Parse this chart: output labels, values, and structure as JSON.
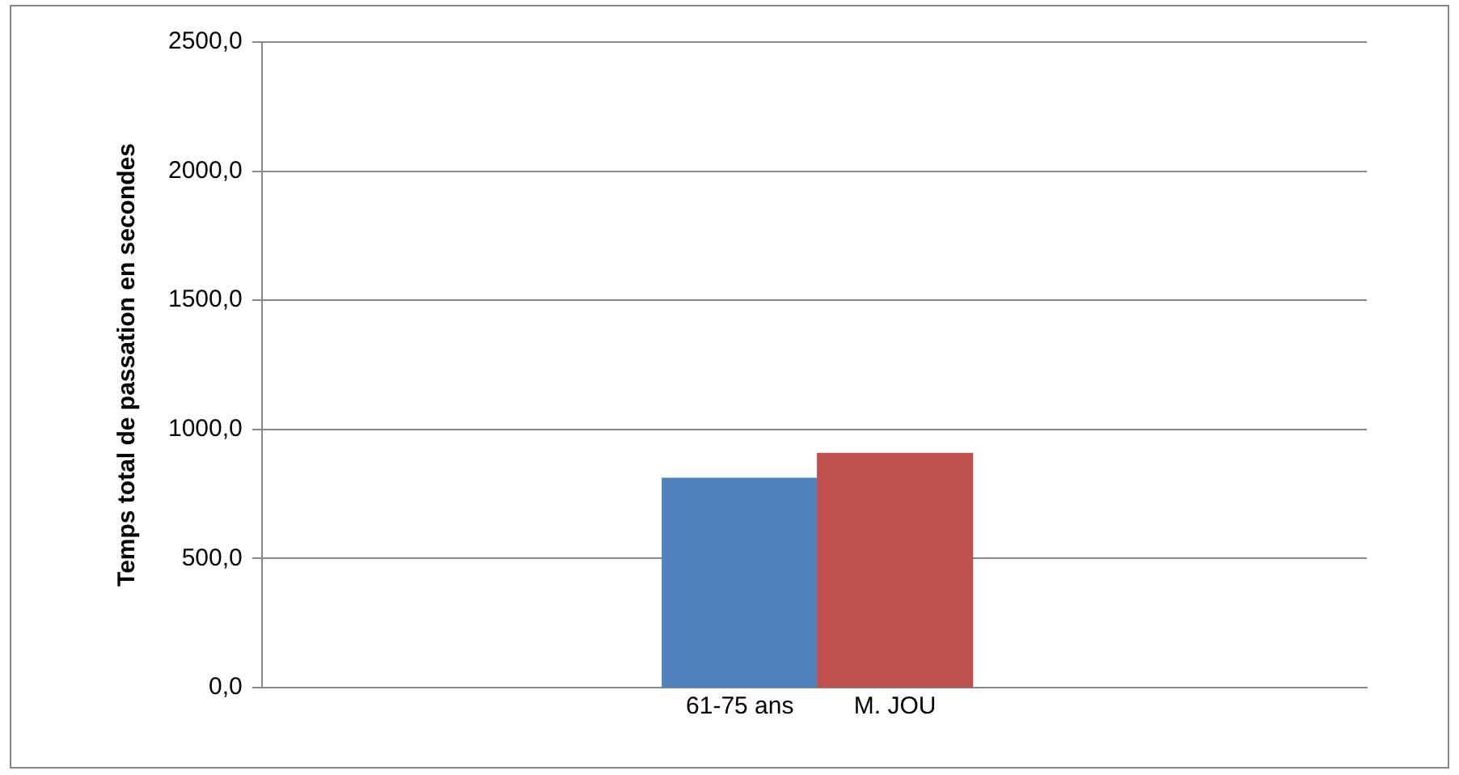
{
  "chart_data": {
    "type": "bar",
    "ylabel": "Temps total de passation en secondes",
    "categories": [
      "61-75 ans",
      "M. JOU"
    ],
    "values": [
      811,
      907
    ],
    "colors": [
      "#4f81bd",
      "#c0504d"
    ],
    "ylim": [
      0,
      2500
    ],
    "yticks": [
      {
        "value": 0,
        "label": "0,0"
      },
      {
        "value": 500,
        "label": "500,0"
      },
      {
        "value": 1000,
        "label": "1000,0"
      },
      {
        "value": 1500,
        "label": "1500,0"
      },
      {
        "value": 2000,
        "label": "2000,0"
      },
      {
        "value": 2500,
        "label": "2500,0"
      }
    ],
    "grid": "y",
    "legend": false
  }
}
